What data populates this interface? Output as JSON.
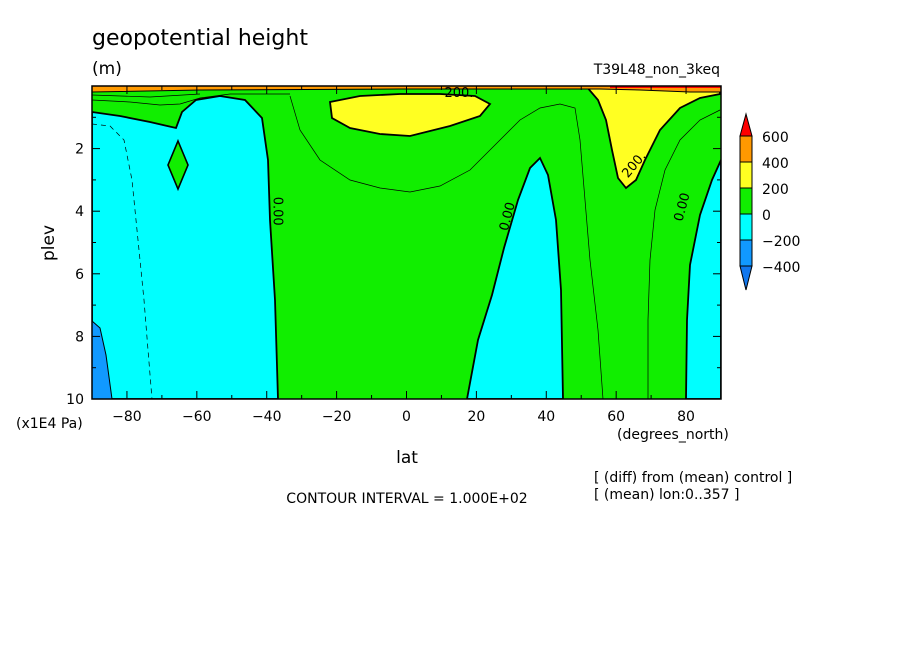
{
  "chart_data": {
    "type": "heatmap",
    "title": "geopotential height",
    "units": "(m)",
    "run_label": "T39L48_non_3keq",
    "xlabel": "lat",
    "x_units": "(degrees_north)",
    "ylabel": "plev",
    "y_units": "(x1E4 Pa)",
    "xlim": [
      -90,
      90
    ],
    "ylim": [
      10,
      0
    ],
    "x_ticks": [
      -80,
      -60,
      -40,
      -20,
      0,
      20,
      40,
      60,
      80
    ],
    "y_ticks": [
      2,
      4,
      6,
      8,
      10
    ],
    "contour_interval": "CONTOUR INTERVAL = 1.000E+02",
    "notes": [
      "[ (diff) from (mean) control ]",
      "[ (mean) lon:0..357 ]"
    ],
    "contour_labels": [
      {
        "text": "200.",
        "lat": 15,
        "plev": 0.35
      },
      {
        "text": "200.",
        "lat": 66,
        "plev": 2.6
      },
      {
        "text": "0.00",
        "lat": -38,
        "plev": 4.0
      },
      {
        "text": "0.00",
        "lat": 30,
        "plev": 4.2
      },
      {
        "text": "0.00",
        "lat": 80,
        "plev": 3.9
      }
    ],
    "colorbar": {
      "levels": [
        "600",
        "400",
        "200",
        "0",
        "−200",
        "−400"
      ],
      "colors": {
        "above_600": "#ff0000",
        "400_600": "#ff9900",
        "200_400": "#ffff22",
        "0_200": "#11ee00",
        "neg200_0": "#00ffff",
        "neg400_neg200": "#1199ff"
      }
    }
  }
}
